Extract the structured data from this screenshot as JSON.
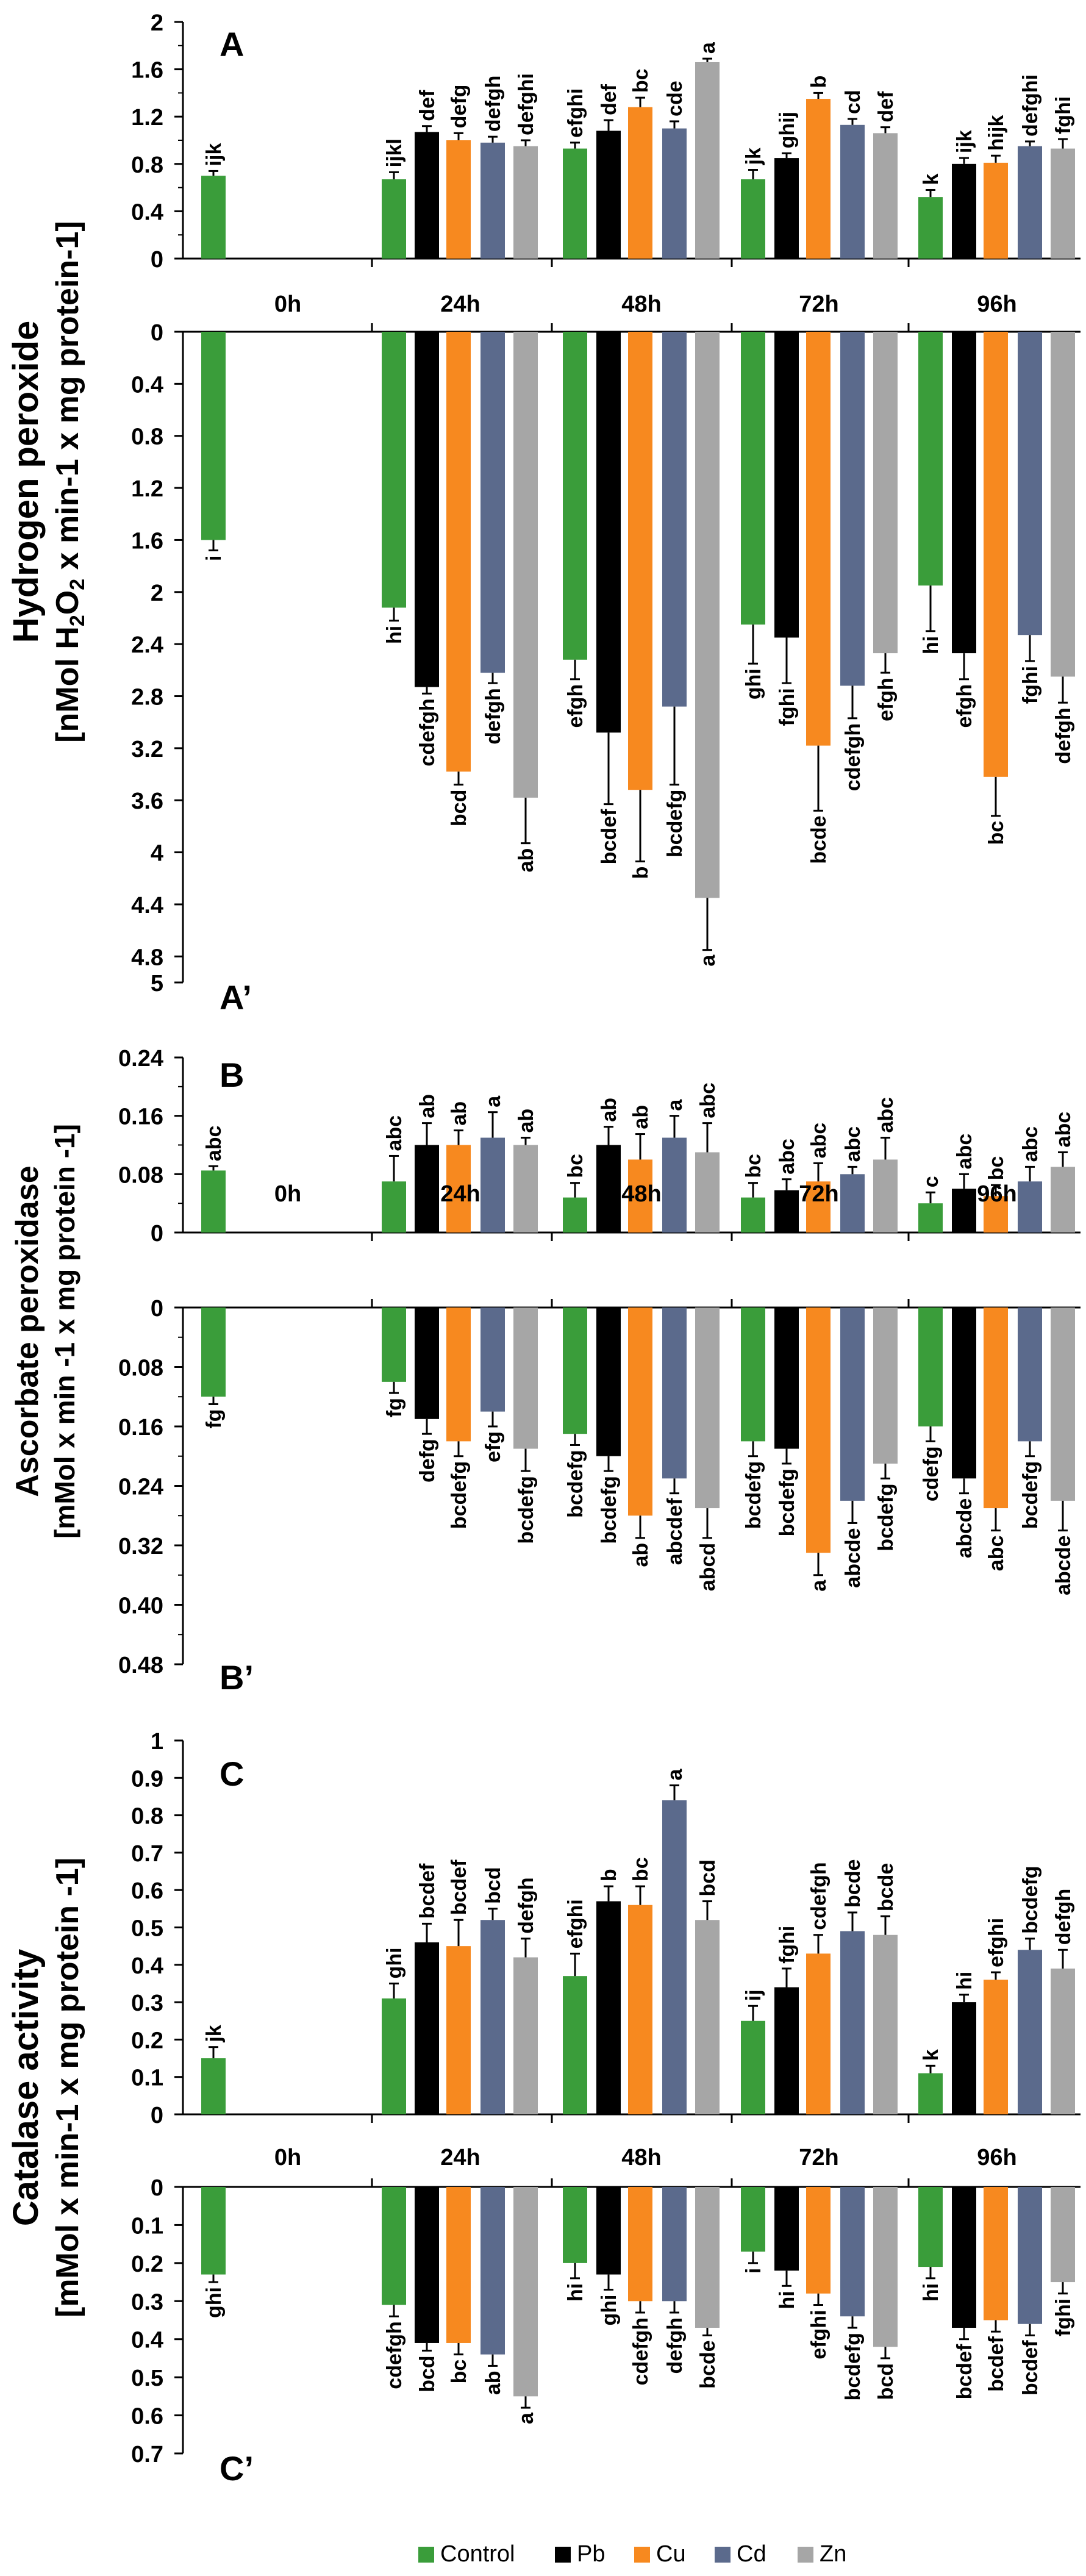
{
  "chart_data": {
    "type": "bar",
    "categories": [
      "0h",
      "24h",
      "48h",
      "72h",
      "96h"
    ],
    "series_names": [
      "Control",
      "Pb",
      "Cu",
      "Cd",
      "Zn"
    ],
    "series_colors": [
      "#3a9d3a",
      "#000000",
      "#f7891f",
      "#5b6a8c",
      "#a6a6a6"
    ],
    "legend_position": "bottom",
    "panels": [
      {
        "id": "A",
        "label": "A",
        "orientation": "up",
        "ylim": [
          0,
          2
        ],
        "ticks": [
          "0",
          "0.4",
          "0.8",
          "1.2",
          "1.6",
          "2"
        ],
        "tick_values": [
          0,
          0.4,
          0.8,
          1.2,
          1.6,
          2
        ],
        "minor_ticks": [
          0.2,
          0.6,
          1.0,
          1.4,
          1.8
        ],
        "values": [
          [
            0.7
          ],
          [
            0.67,
            1.07,
            1.0,
            0.98,
            0.95
          ],
          [
            0.93,
            1.08,
            1.28,
            1.1,
            1.66
          ],
          [
            0.67,
            0.85,
            1.35,
            1.13,
            1.06
          ],
          [
            0.52,
            0.8,
            0.81,
            0.95,
            0.93
          ]
        ],
        "errors": [
          [
            0.04
          ],
          [
            0.06,
            0.05,
            0.06,
            0.05,
            0.05
          ],
          [
            0.05,
            0.09,
            0.08,
            0.06,
            0.03
          ],
          [
            0.08,
            0.04,
            0.05,
            0.05,
            0.05
          ],
          [
            0.06,
            0.05,
            0.06,
            0.04,
            0.08
          ]
        ],
        "letters": [
          [
            "ijk"
          ],
          [
            "ijkl",
            "def",
            "defg",
            "defgh",
            "defghi"
          ],
          [
            "efghi",
            "def",
            "bc",
            "cde",
            "a"
          ],
          [
            "jk",
            "ghij",
            "b",
            "cd",
            "def"
          ],
          [
            "k",
            "ijk",
            "hijk",
            "defghi",
            "fghi"
          ]
        ]
      },
      {
        "id": "A2",
        "label": "A’",
        "orientation": "down",
        "ylim": [
          0,
          5
        ],
        "ticks": [
          "0",
          "0.4",
          "0.8",
          "1.2",
          "1.6",
          "2",
          "2.4",
          "2.8",
          "3.2",
          "3.6",
          "4",
          "4.4",
          "4.8",
          "5"
        ],
        "tick_values": [
          0,
          0.4,
          0.8,
          1.2,
          1.6,
          2,
          2.4,
          2.8,
          3.2,
          3.6,
          4,
          4.4,
          4.8,
          5
        ],
        "minor_ticks": [],
        "values": [
          [
            1.6
          ],
          [
            2.12,
            2.73,
            3.38,
            2.62,
            3.58
          ],
          [
            2.52,
            3.08,
            3.52,
            2.88,
            4.35
          ],
          [
            2.25,
            2.35,
            3.18,
            2.72,
            2.47
          ],
          [
            1.95,
            2.47,
            3.42,
            2.33,
            2.65
          ]
        ],
        "errors": [
          [
            0.08
          ],
          [
            0.1,
            0.05,
            0.1,
            0.08,
            0.35
          ],
          [
            0.15,
            0.55,
            0.55,
            0.6,
            0.4
          ],
          [
            0.3,
            0.35,
            0.5,
            0.25,
            0.15
          ],
          [
            0.35,
            0.2,
            0.3,
            0.2,
            0.2
          ]
        ],
        "letters": [
          [
            "i"
          ],
          [
            "hi",
            "cdefgh",
            "bcd",
            "defgh",
            "ab"
          ],
          [
            "efgh",
            "bcdef",
            "b",
            "bcdefg",
            "a"
          ],
          [
            "ghi",
            "fghi",
            "bcde",
            "cdefgh",
            "efgh"
          ],
          [
            "hi",
            "efgh",
            "bc",
            "fghi",
            "defgh"
          ]
        ]
      },
      {
        "id": "B",
        "label": "B",
        "orientation": "up",
        "ylim": [
          0,
          0.24
        ],
        "ticks": [
          "0",
          "0.08",
          "0.16",
          "0.24"
        ],
        "tick_values": [
          0,
          0.08,
          0.16,
          0.24
        ],
        "minor_ticks": [
          0.04,
          0.12,
          0.2
        ],
        "values": [
          [
            0.085
          ],
          [
            0.07,
            0.12,
            0.12,
            0.13,
            0.12
          ],
          [
            0.048,
            0.12,
            0.1,
            0.13,
            0.11
          ],
          [
            0.048,
            0.058,
            0.07,
            0.08,
            0.1
          ],
          [
            0.04,
            0.06,
            0.05,
            0.07,
            0.09
          ]
        ],
        "errors": [
          [
            0.006
          ],
          [
            0.035,
            0.03,
            0.02,
            0.035,
            0.01
          ],
          [
            0.02,
            0.025,
            0.035,
            0.03,
            0.04
          ],
          [
            0.02,
            0.015,
            0.025,
            0.01,
            0.03
          ],
          [
            0.015,
            0.02,
            0.015,
            0.02,
            0.02
          ]
        ],
        "letters": [
          [
            "abc"
          ],
          [
            "abc",
            "ab",
            "ab",
            "a",
            "ab"
          ],
          [
            "bc",
            "ab",
            "ab",
            "a",
            "abc"
          ],
          [
            "bc",
            "abc",
            "abc",
            "abc",
            "abc"
          ],
          [
            "c",
            "abc",
            "bc",
            "abc",
            "abc"
          ]
        ]
      },
      {
        "id": "B2",
        "label": "B’",
        "orientation": "down",
        "ylim": [
          0,
          0.48
        ],
        "ticks": [
          "0",
          "0.08",
          "0.16",
          "0.24",
          "0.32",
          "0.40",
          "0.48"
        ],
        "tick_values": [
          0,
          0.08,
          0.16,
          0.24,
          0.32,
          0.4,
          0.48
        ],
        "minor_ticks": [
          0.04,
          0.12,
          0.2,
          0.28,
          0.36,
          0.44
        ],
        "values": [
          [
            0.12
          ],
          [
            0.1,
            0.15,
            0.18,
            0.14,
            0.19
          ],
          [
            0.17,
            0.2,
            0.28,
            0.23,
            0.27
          ],
          [
            0.18,
            0.19,
            0.33,
            0.26,
            0.21
          ],
          [
            0.16,
            0.23,
            0.27,
            0.18,
            0.26
          ]
        ],
        "errors": [
          [
            0.01
          ],
          [
            0.015,
            0.02,
            0.02,
            0.02,
            0.03
          ],
          [
            0.015,
            0.02,
            0.03,
            0.02,
            0.04
          ],
          [
            0.02,
            0.02,
            0.03,
            0.03,
            0.02
          ],
          [
            0.02,
            0.02,
            0.03,
            0.02,
            0.04
          ]
        ],
        "letters": [
          [
            "fg"
          ],
          [
            "fg",
            "defg",
            "bcdefg",
            "efg",
            "bcdefg"
          ],
          [
            "bcdefg",
            "bcdefg",
            "ab",
            "abcdef",
            "abcd"
          ],
          [
            "bcdefg",
            "bcdefg",
            "a",
            "abcde",
            "bcdefg"
          ],
          [
            "cdefg",
            "abcde",
            "abc",
            "bcdefg",
            "abcde"
          ]
        ]
      },
      {
        "id": "C",
        "label": "C",
        "orientation": "up",
        "ylim": [
          0,
          1
        ],
        "ticks": [
          "0",
          "0.1",
          "0.2",
          "0.3",
          "0.4",
          "0.5",
          "0.6",
          "0.7",
          "0.8",
          "0.9",
          "1"
        ],
        "tick_values": [
          0,
          0.1,
          0.2,
          0.3,
          0.4,
          0.5,
          0.6,
          0.7,
          0.8,
          0.9,
          1
        ],
        "minor_ticks": [],
        "values": [
          [
            0.15
          ],
          [
            0.31,
            0.46,
            0.45,
            0.52,
            0.42
          ],
          [
            0.37,
            0.57,
            0.56,
            0.84,
            0.52
          ],
          [
            0.25,
            0.34,
            0.43,
            0.49,
            0.48
          ],
          [
            0.11,
            0.3,
            0.36,
            0.44,
            0.39
          ]
        ],
        "errors": [
          [
            0.03
          ],
          [
            0.04,
            0.05,
            0.07,
            0.03,
            0.05
          ],
          [
            0.06,
            0.04,
            0.05,
            0.04,
            0.05
          ],
          [
            0.04,
            0.05,
            0.05,
            0.05,
            0.05
          ],
          [
            0.02,
            0.02,
            0.02,
            0.03,
            0.05
          ]
        ],
        "letters": [
          [
            "jk"
          ],
          [
            "ghi",
            "bcdef",
            "bcdef",
            "bcd",
            "defgh"
          ],
          [
            "efghi",
            "b",
            "bc",
            "a",
            "bcd"
          ],
          [
            "ij",
            "fghi",
            "cdefgh",
            "bcde",
            "bcde"
          ],
          [
            "k",
            "hi",
            "efghi",
            "bcdefg",
            "defgh"
          ]
        ]
      },
      {
        "id": "C2",
        "label": "C’",
        "orientation": "down",
        "ylim": [
          0,
          0.7
        ],
        "ticks": [
          "0",
          "0.1",
          "0.2",
          "0.3",
          "0.4",
          "0.5",
          "0.6",
          "0.7"
        ],
        "tick_values": [
          0,
          0.1,
          0.2,
          0.3,
          0.4,
          0.5,
          0.6,
          0.7
        ],
        "minor_ticks": [],
        "values": [
          [
            0.23
          ],
          [
            0.31,
            0.41,
            0.41,
            0.44,
            0.55
          ],
          [
            0.2,
            0.23,
            0.3,
            0.3,
            0.37
          ],
          [
            0.17,
            0.22,
            0.28,
            0.34,
            0.42
          ],
          [
            0.21,
            0.37,
            0.35,
            0.36,
            0.25
          ]
        ],
        "errors": [
          [
            0.02
          ],
          [
            0.03,
            0.02,
            0.03,
            0.03,
            0.03
          ],
          [
            0.04,
            0.04,
            0.03,
            0.03,
            0.02
          ],
          [
            0.03,
            0.04,
            0.03,
            0.03,
            0.03
          ],
          [
            0.03,
            0.03,
            0.03,
            0.03,
            0.03
          ]
        ],
        "letters": [
          [
            "ghi"
          ],
          [
            "cdefgh",
            "bcd",
            "bc",
            "ab",
            "a"
          ],
          [
            "hi",
            "ghi",
            "cdefgh",
            "defgh",
            "bcde"
          ],
          [
            "i",
            "hi",
            "efghi",
            "bcdefg",
            "bcd"
          ],
          [
            "hi",
            "bcdef",
            "bcdef",
            "bcdef",
            "fghi"
          ]
        ]
      }
    ],
    "ylabels": [
      {
        "line1": "Hydrogen peroxide",
        "line2_pre": "[nMol H",
        "line2_sub": "2",
        "line2_mid": "O",
        "line2_sub2": "2",
        "line2_post": " x min-1 x mg protein-1]"
      },
      {
        "line1": "Ascorbate peroxidase",
        "line2": "[mMol x min -1 x mg protein -1]"
      },
      {
        "line1": "Catalase activity",
        "line2": "[mMol x min-1 x mg protein -1]"
      }
    ]
  }
}
